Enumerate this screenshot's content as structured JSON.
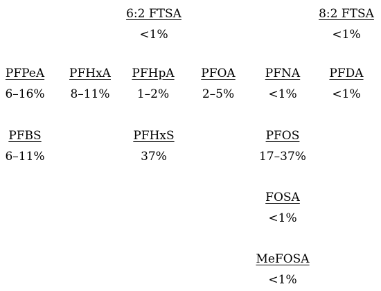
{
  "compounds": [
    {
      "name": "6:2 FTSA",
      "percent": "<1%"
    },
    {
      "name": "8:2 FTSA",
      "percent": "<1%"
    },
    {
      "name": "PFPeA",
      "percent": "6–16%"
    },
    {
      "name": "PFHxA",
      "percent": "8–11%"
    },
    {
      "name": "PFHpA",
      "percent": "1–2%"
    },
    {
      "name": "PFOA",
      "percent": "2–5%"
    },
    {
      "name": "PFNA",
      "percent": "<1%"
    },
    {
      "name": "PFDA",
      "percent": "<1%"
    },
    {
      "name": "PFBS",
      "percent": "6–11%"
    },
    {
      "name": "PFHxS",
      "percent": "37%"
    },
    {
      "name": "PFOS",
      "percent": "17–37%"
    },
    {
      "name": "FOSA",
      "percent": "<1%"
    },
    {
      "name": "MeFOSA",
      "percent": "<1%"
    }
  ]
}
